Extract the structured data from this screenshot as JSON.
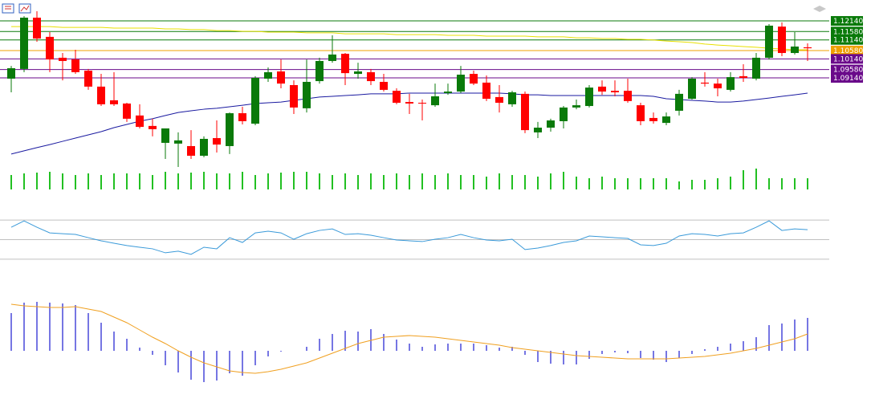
{
  "chart_data": [
    {
      "type": "candlestick",
      "up_color": "#0a7a0a",
      "down_color": "#ff0000",
      "ylim": [
        1.0445,
        1.1324
      ],
      "open": [
        1.091,
        1.0961,
        1.1231,
        1.113,
        1.102,
        1.1011,
        1.0952,
        1.0868,
        1.0796,
        1.0779,
        1.0716,
        1.0661,
        1.0572,
        1.0568,
        1.0555,
        1.0504,
        1.0597,
        1.0555,
        1.0728,
        1.0673,
        1.091,
        1.0948,
        1.0876,
        1.0754,
        1.0897,
        1.1003,
        1.1041,
        1.0935,
        1.0944,
        1.0893,
        1.0846,
        1.0787,
        1.0783,
        1.077,
        1.0834,
        1.0842,
        1.0935,
        1.0889,
        1.0813,
        1.0775,
        1.083,
        1.0627,
        1.0652,
        1.0686,
        1.0758,
        1.0766,
        1.0868,
        1.0846,
        1.0846,
        1.077,
        1.0703,
        1.0677,
        1.0741,
        1.0804,
        1.0889,
        1.0884,
        1.0851,
        1.0923,
        1.091,
        1.102,
        1.1184,
        1.1045,
        1.1075
      ],
      "high": [
        1.0977,
        1.1239,
        1.1265,
        1.1155,
        1.1045,
        1.1062,
        1.0961,
        1.0935,
        1.0944,
        1.0783,
        1.0775,
        1.0699,
        1.0648,
        1.0627,
        1.0639,
        1.0606,
        1.069,
        1.0732,
        1.0762,
        1.0923,
        1.0969,
        1.1011,
        1.0901,
        1.1011,
        1.102,
        1.1138,
        1.1045,
        1.0994,
        1.0961,
        1.0935,
        1.0859,
        1.083,
        1.08,
        1.0884,
        1.0884,
        1.0977,
        1.0952,
        1.0927,
        1.0876,
        1.0846,
        1.0842,
        1.0682,
        1.0699,
        1.0766,
        1.08,
        1.0876,
        1.0901,
        1.0901,
        1.091,
        1.0783,
        1.0732,
        1.0732,
        1.0851,
        1.0918,
        1.0944,
        1.091,
        1.0944,
        1.0986,
        1.1045,
        1.1197,
        1.1206,
        1.1155,
        1.1096
      ],
      "low": [
        1.0838,
        1.0944,
        1.1104,
        1.0944,
        1.0901,
        1.0935,
        1.0851,
        1.0766,
        1.0766,
        1.0682,
        1.0648,
        1.0606,
        1.0487,
        1.0445,
        1.0487,
        1.0496,
        1.0521,
        1.0513,
        1.0669,
        1.0665,
        1.0893,
        1.0859,
        1.0724,
        1.0732,
        1.0884,
        1.0994,
        1.0876,
        1.091,
        1.0876,
        1.0842,
        1.0775,
        1.0724,
        1.069,
        1.0762,
        1.0825,
        1.0834,
        1.0876,
        1.0792,
        1.0732,
        1.0762,
        1.0623,
        1.0597,
        1.0631,
        1.0648,
        1.0749,
        1.0758,
        1.0825,
        1.0817,
        1.0783,
        1.0665,
        1.0673,
        1.0665,
        1.0716,
        1.08,
        1.0868,
        1.0817,
        1.0842,
        1.0893,
        1.0901,
        1.1011,
        1.1028,
        1.1037,
        1.1003
      ],
      "close": [
        1.0965,
        1.1231,
        1.1121,
        1.1011,
        1.1003,
        1.0944,
        1.0868,
        1.0775,
        1.0775,
        1.0699,
        1.0656,
        1.0644,
        1.0648,
        1.0585,
        1.0504,
        1.0593,
        1.0563,
        1.0728,
        1.0686,
        1.0914,
        1.0944,
        1.0884,
        1.0758,
        1.0893,
        1.1003,
        1.1037,
        1.0939,
        1.0948,
        1.0897,
        1.0851,
        1.0783,
        1.0779,
        1.0779,
        1.0817,
        1.0842,
        1.0931,
        1.0884,
        1.0804,
        1.0783,
        1.0838,
        1.0639,
        1.0652,
        1.069,
        1.0758,
        1.077,
        1.0863,
        1.0842,
        1.0838,
        1.0792,
        1.0686,
        1.0686,
        1.0711,
        1.083,
        1.091,
        1.0884,
        1.0859,
        1.0918,
        1.0914,
        1.102,
        1.1189,
        1.1045,
        1.1079,
        1.107
      ],
      "moving_averages": [
        {
          "color": "#1a1aa0",
          "values": [
            1.0513,
            1.053,
            1.0547,
            1.0563,
            1.058,
            1.0597,
            1.0614,
            1.0631,
            1.0652,
            1.0669,
            1.0686,
            1.0699,
            1.0716,
            1.0732,
            1.0741,
            1.0749,
            1.0754,
            1.0762,
            1.077,
            1.0779,
            1.0783,
            1.0787,
            1.0796,
            1.0804,
            1.0813,
            1.0817,
            1.0821,
            1.0825,
            1.083,
            1.083,
            1.083,
            1.0834,
            1.0834,
            1.0834,
            1.0834,
            1.0834,
            1.0834,
            1.0834,
            1.0834,
            1.083,
            1.0825,
            1.0825,
            1.0821,
            1.0821,
            1.0821,
            1.0821,
            1.0821,
            1.0821,
            1.0821,
            1.0821,
            1.0817,
            1.0804,
            1.08,
            1.0796,
            1.0792,
            1.0787,
            1.0787,
            1.0792,
            1.08,
            1.0808,
            1.0817,
            1.0825,
            1.0834
          ]
        },
        {
          "color": "#e8e000",
          "values": [
            1.1184,
            1.1184,
            1.1184,
            1.1184,
            1.118,
            1.118,
            1.118,
            1.118,
            1.1176,
            1.1176,
            1.1176,
            1.1176,
            1.1172,
            1.1172,
            1.1168,
            1.1168,
            1.1163,
            1.1163,
            1.1159,
            1.1159,
            1.1155,
            1.1155,
            1.1155,
            1.1151,
            1.1151,
            1.1151,
            1.1146,
            1.1146,
            1.1146,
            1.1146,
            1.1142,
            1.1142,
            1.1142,
            1.1142,
            1.1138,
            1.1138,
            1.1138,
            1.1134,
            1.1134,
            1.1134,
            1.1134,
            1.113,
            1.113,
            1.113,
            1.1125,
            1.1125,
            1.1121,
            1.1121,
            1.1117,
            1.1117,
            1.1113,
            1.1108,
            1.1104,
            1.11,
            1.1092,
            1.1087,
            1.1083,
            1.1079,
            1.1075,
            1.107,
            1.1066,
            1.1062,
            1.1062
          ]
        }
      ],
      "levels": [
        {
          "value": 1.1214,
          "label": "1.12140",
          "color": "#0a7a0a"
        },
        {
          "value": 1.1158,
          "label": "1.11580",
          "color": "#0a7a0a"
        },
        {
          "value": 1.1114,
          "label": "1.11140",
          "color": "#0a7a0a"
        },
        {
          "value": 1.1058,
          "label": "1.10580",
          "color": "#f0a000"
        },
        {
          "value": 1.1014,
          "label": "1.10140",
          "color": "#6a0a8a"
        },
        {
          "value": 1.0958,
          "label": "1.09580",
          "color": "#6a0a8a"
        },
        {
          "value": 1.0914,
          "label": "1.09140",
          "color": "#6a0a8a"
        }
      ]
    },
    {
      "type": "bar",
      "color": "#22c022",
      "ylim": [
        0,
        30
      ],
      "values": [
        18,
        20,
        21,
        22,
        20,
        18,
        20,
        18,
        20,
        20,
        20,
        18,
        22,
        20,
        21,
        22,
        20,
        20,
        22,
        18,
        20,
        21,
        22,
        22,
        20,
        18,
        20,
        18,
        20,
        18,
        20,
        18,
        20,
        18,
        20,
        18,
        18,
        16,
        20,
        18,
        18,
        16,
        20,
        22,
        16,
        14,
        16,
        14,
        14,
        14,
        14,
        14,
        10,
        12,
        12,
        14,
        16,
        24,
        26,
        14,
        14,
        14,
        14
      ]
    },
    {
      "type": "line",
      "color": "#3a9ad9",
      "ylim": [
        20,
        80
      ],
      "levels": [
        30,
        50,
        70
      ],
      "values": [
        62.7,
        69.2,
        62.7,
        56.9,
        56.1,
        55.3,
        52.0,
        48.8,
        46.3,
        43.9,
        42.2,
        40.6,
        36.5,
        38.2,
        34.9,
        42.2,
        40.6,
        52.0,
        47.1,
        56.9,
        58.6,
        56.9,
        50.4,
        56.1,
        59.4,
        61.0,
        55.3,
        56.1,
        54.5,
        52.0,
        49.6,
        48.8,
        48.0,
        50.4,
        52.0,
        55.3,
        52.0,
        49.6,
        48.8,
        50.4,
        39.8,
        41.4,
        43.9,
        47.1,
        48.8,
        53.7,
        52.9,
        52.0,
        51.2,
        44.7,
        43.9,
        46.3,
        53.7,
        56.1,
        55.3,
        53.7,
        56.1,
        56.9,
        62.7,
        69.2,
        59.4,
        61.0,
        60.2
      ]
    },
    {
      "type": "macd",
      "color": "#1a1ad0",
      "signal_color": "#f0a020",
      "ylim": [
        -0.0063,
        0.0097
      ],
      "values": [
        0.0047,
        0.006,
        0.0061,
        0.006,
        0.0059,
        0.0057,
        0.0047,
        0.0035,
        0.0024,
        0.0015,
        0.0004,
        -0.0005,
        -0.0018,
        -0.0027,
        -0.0036,
        -0.0039,
        -0.0037,
        -0.0028,
        -0.0031,
        -0.0018,
        -0.0007,
        -0.0001,
        0,
        0.0005,
        0.0015,
        0.0021,
        0.0025,
        0.0024,
        0.0027,
        0.0021,
        0.0014,
        0.0009,
        0.0005,
        0.0008,
        0.0009,
        0.0009,
        0.0009,
        0.0007,
        0.0004,
        0.0005,
        -0.0005,
        -0.0014,
        -0.0016,
        -0.0017,
        -0.0017,
        -0.001,
        -0.0004,
        -0.0002,
        -0.0003,
        -0.0009,
        -0.0011,
        -0.0014,
        -0.0009,
        -0.0004,
        0.0002,
        0.0005,
        0.0009,
        0.0012,
        0.0017,
        0.0032,
        0.0034,
        0.0039,
        0.0041
      ],
      "signal": [
        0.0058,
        0.0056,
        0.0055,
        0.0054,
        0.0054,
        0.0055,
        0.0052,
        0.0049,
        0.0042,
        0.0035,
        0.0026,
        0.0017,
        0.0009,
        0,
        -0.0008,
        -0.0015,
        -0.002,
        -0.0025,
        -0.0027,
        -0.0028,
        -0.0026,
        -0.0023,
        -0.0019,
        -0.0015,
        -0.0009,
        -0.0003,
        0.0003,
        0.0009,
        0.0013,
        0.0017,
        0.0018,
        0.0019,
        0.0018,
        0.0017,
        0.0015,
        0.0013,
        0.0011,
        0.0009,
        0.0007,
        0.0004,
        0.0002,
        0,
        -0.0002,
        -0.0004,
        -0.0006,
        -0.0007,
        -0.0008,
        -0.0009,
        -0.001,
        -0.001,
        -0.001,
        -0.001,
        -0.0009,
        -0.0008,
        -0.0007,
        -0.0005,
        -0.0003,
        0,
        0.0003,
        0.0007,
        0.0011,
        0.0015,
        0.0021
      ]
    }
  ]
}
